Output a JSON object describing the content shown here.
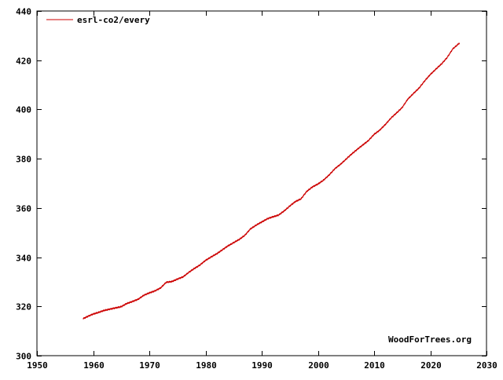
{
  "chart_data": {
    "type": "line",
    "title": "",
    "xlabel": "",
    "ylabel": "",
    "xlim": [
      1950,
      2030
    ],
    "ylim": [
      300,
      440
    ],
    "x_ticks": [
      1950,
      1960,
      1970,
      1980,
      1990,
      2000,
      2010,
      2020,
      2030
    ],
    "y_ticks": [
      300,
      320,
      340,
      360,
      380,
      400,
      420,
      440
    ],
    "grid": false,
    "legend_position": "top-left",
    "watermark": "WoodForTrees.org",
    "series": [
      {
        "name": "esrl-co2/every",
        "color": "#cc0000",
        "x": [
          1958.2,
          1959,
          1960,
          1961,
          1962,
          1963,
          1964,
          1965,
          1966,
          1967,
          1968,
          1969,
          1970,
          1971,
          1972,
          1973,
          1974,
          1975,
          1976,
          1977,
          1978,
          1979,
          1980,
          1981,
          1982,
          1983,
          1984,
          1985,
          1986,
          1987,
          1988,
          1989,
          1990,
          1991,
          1992,
          1993,
          1994,
          1995,
          1996,
          1997,
          1998,
          1999,
          2000,
          2001,
          2002,
          2003,
          2004,
          2005,
          2006,
          2007,
          2008,
          2009,
          2010,
          2011,
          2012,
          2013,
          2014,
          2015,
          2016,
          2017,
          2018,
          2019,
          2020,
          2021,
          2022,
          2023,
          2024,
          2025.2
        ],
        "y": [
          315.0,
          315.9,
          316.9,
          317.6,
          318.4,
          318.9,
          319.4,
          319.9,
          321.2,
          322.0,
          322.9,
          324.5,
          325.5,
          326.3,
          327.5,
          329.8,
          330.1,
          331.1,
          332.0,
          333.8,
          335.4,
          336.8,
          338.7,
          340.1,
          341.4,
          343.0,
          344.6,
          345.9,
          347.2,
          348.9,
          351.5,
          353.0,
          354.3,
          355.6,
          356.4,
          357.1,
          358.8,
          360.8,
          362.6,
          363.7,
          366.7,
          368.5,
          369.7,
          371.3,
          373.4,
          375.9,
          377.7,
          379.8,
          381.9,
          383.8,
          385.6,
          387.4,
          389.9,
          391.6,
          393.9,
          396.5,
          398.6,
          400.8,
          404.2,
          406.5,
          408.7,
          411.6,
          414.2,
          416.4,
          418.5,
          421.1,
          424.6,
          427.0
        ]
      }
    ]
  }
}
